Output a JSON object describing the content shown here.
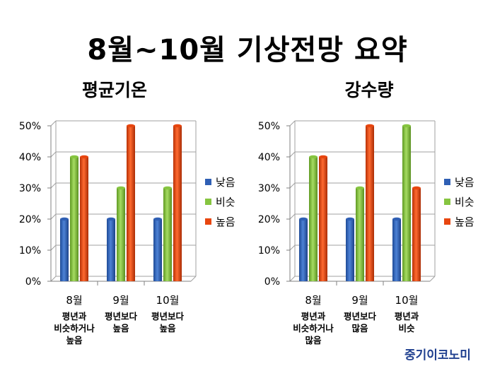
{
  "title": "8월~10월 기상전망 요약",
  "watermark": "중기이코노미",
  "chart_data": [
    {
      "type": "bar",
      "title": "평균기온",
      "categories": [
        "8월",
        "9월",
        "10월"
      ],
      "category_notes": [
        [
          "평년과",
          "비슷하거나",
          "높음"
        ],
        [
          "평년보다",
          "높음"
        ],
        [
          "평년보다",
          "높음"
        ]
      ],
      "series": [
        {
          "name": "낮음",
          "color": "#2f5fb4",
          "values": [
            20,
            20,
            20
          ]
        },
        {
          "name": "비슷",
          "color": "#86c540",
          "values": [
            40,
            30,
            30
          ]
        },
        {
          "name": "높음",
          "color": "#e8460f",
          "values": [
            40,
            50,
            50
          ]
        }
      ],
      "yticks": [
        "0%",
        "10%",
        "20%",
        "30%",
        "40%",
        "50%"
      ],
      "ylim": [
        0,
        50
      ],
      "grid": true,
      "legend": "right"
    },
    {
      "type": "bar",
      "title": "강수량",
      "categories": [
        "8월",
        "9월",
        "10월"
      ],
      "category_notes": [
        [
          "평년과",
          "비슷하거나",
          "많음"
        ],
        [
          "평년보다",
          "많음"
        ],
        [
          "평년과",
          "비슷"
        ]
      ],
      "series": [
        {
          "name": "낮음",
          "color": "#2f5fb4",
          "values": [
            20,
            20,
            20
          ]
        },
        {
          "name": "비슷",
          "color": "#86c540",
          "values": [
            40,
            30,
            50
          ]
        },
        {
          "name": "높음",
          "color": "#e8460f",
          "values": [
            40,
            50,
            30
          ]
        }
      ],
      "yticks": [
        "0%",
        "10%",
        "20%",
        "30%",
        "40%",
        "50%"
      ],
      "ylim": [
        0,
        50
      ],
      "grid": true,
      "legend": "right"
    }
  ]
}
